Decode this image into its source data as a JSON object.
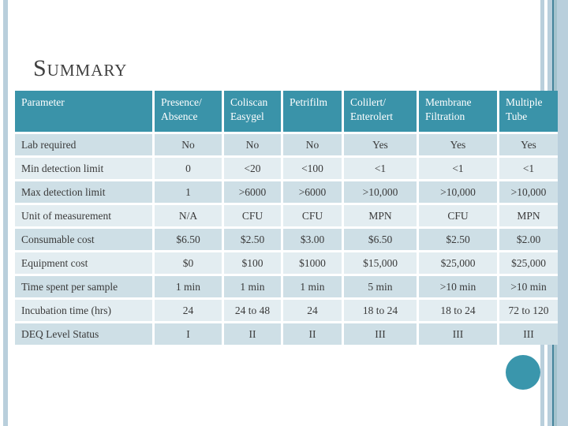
{
  "slide": {
    "title": "Summary"
  },
  "colors": {
    "header_teal": "#3A93A9",
    "band_dark": "#CEDFE6",
    "band_light": "#E3EDF1",
    "stripe_blue": "#B9CFDC",
    "stripe_teal_dark": "#45849B",
    "stripe_teal_muted": "#A3C2CC",
    "circle_teal": "#3A96AC"
  },
  "chart_data": {
    "type": "table",
    "title": "Summary",
    "columns": [
      "Parameter",
      "Presence/\nAbsence",
      "Coliscan\nEasygel",
      "Petrifilm",
      "Colilert/\nEnterolert",
      "Membrane\nFiltration",
      "Multiple\nTube"
    ],
    "rows": [
      [
        "Lab required",
        "No",
        "No",
        "No",
        "Yes",
        "Yes",
        "Yes"
      ],
      [
        "Min detection limit",
        "0",
        "<20",
        "<100",
        "<1",
        "<1",
        "<1"
      ],
      [
        "Max detection limit",
        "1",
        ">6000",
        ">6000",
        ">10,000",
        ">10,000",
        ">10,000"
      ],
      [
        "Unit of measurement",
        "N/A",
        "CFU",
        "CFU",
        "MPN",
        "CFU",
        "MPN"
      ],
      [
        "Consumable cost",
        "$6.50",
        "$2.50",
        "$3.00",
        "$6.50",
        "$2.50",
        "$2.00"
      ],
      [
        "Equipment cost",
        "$0",
        "$100",
        "$1000",
        "$15,000",
        "$25,000",
        "$25,000"
      ],
      [
        "Time spent per sample",
        "1 min",
        "1 min",
        "1 min",
        "5 min",
        ">10 min",
        ">10 min"
      ],
      [
        "Incubation time (hrs)",
        "24",
        "24 to 48",
        "24",
        "18 to 24",
        "18 to 24",
        "72 to 120"
      ],
      [
        "DEQ Level Status",
        "I",
        "II",
        "II",
        "III",
        "III",
        "III"
      ]
    ]
  }
}
